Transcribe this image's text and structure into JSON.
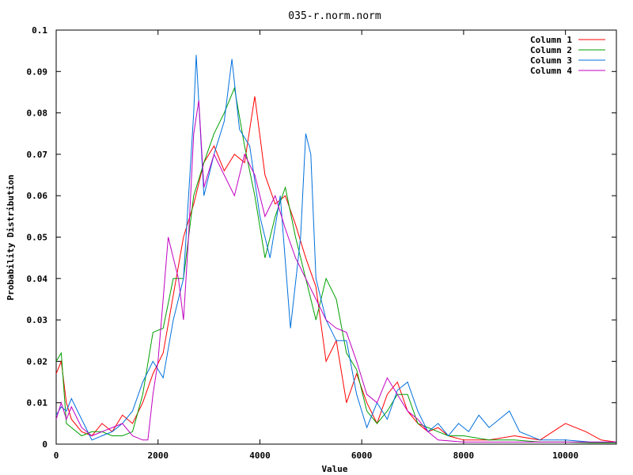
{
  "chart_data": {
    "type": "line",
    "title": "035-r.norm.norm",
    "xlabel": "Value",
    "ylabel": "Probability Distribution",
    "xlim": [
      0,
      11000
    ],
    "ylim": [
      0,
      0.1
    ],
    "x_ticks": [
      0,
      2000,
      4000,
      6000,
      8000,
      10000
    ],
    "x_tick_labels": [
      "0",
      "2000",
      "4000",
      "6000",
      "8000",
      "10000"
    ],
    "y_ticks": [
      0,
      0.01,
      0.02,
      0.03,
      0.04,
      0.05,
      0.06,
      0.07,
      0.08,
      0.09,
      0.1
    ],
    "y_tick_labels": [
      "0",
      "0.01",
      "0.02",
      "0.03",
      "0.04",
      "0.05",
      "0.06",
      "0.07",
      "0.08",
      "0.09",
      "0.1"
    ],
    "grid": false,
    "legend_position": "top-right",
    "series": [
      {
        "name": "Column 1",
        "color": "#ff0000",
        "x": [
          0,
          100,
          200,
          300,
          500,
          700,
          900,
          1100,
          1300,
          1500,
          1700,
          1900,
          2100,
          2300,
          2500,
          2700,
          2900,
          3100,
          3300,
          3500,
          3700,
          3900,
          4100,
          4300,
          4500,
          4700,
          4900,
          5100,
          5300,
          5500,
          5700,
          5900,
          6100,
          6300,
          6500,
          6700,
          6900,
          7100,
          7300,
          7500,
          7700,
          8000,
          8500,
          9000,
          9500,
          10000,
          10400,
          10700,
          11000
        ],
        "y": [
          0.017,
          0.02,
          0.01,
          0.006,
          0.003,
          0.002,
          0.005,
          0.003,
          0.007,
          0.005,
          0.01,
          0.017,
          0.022,
          0.036,
          0.05,
          0.058,
          0.068,
          0.072,
          0.066,
          0.07,
          0.068,
          0.084,
          0.065,
          0.058,
          0.06,
          0.053,
          0.045,
          0.038,
          0.02,
          0.025,
          0.01,
          0.017,
          0.01,
          0.005,
          0.012,
          0.015,
          0.008,
          0.005,
          0.003,
          0.004,
          0.002,
          0.001,
          0.001,
          0.002,
          0.001,
          0.005,
          0.003,
          0.001,
          0.0005
        ]
      },
      {
        "name": "Column 2",
        "color": "#00a000",
        "x": [
          0,
          100,
          200,
          300,
          500,
          700,
          900,
          1100,
          1300,
          1500,
          1700,
          1900,
          2100,
          2300,
          2500,
          2700,
          2900,
          3100,
          3300,
          3500,
          3700,
          3900,
          4100,
          4300,
          4500,
          4700,
          4900,
          5100,
          5300,
          5500,
          5700,
          5900,
          6100,
          6300,
          6500,
          6700,
          6900,
          7100,
          7300,
          7500,
          7700,
          8000,
          8500,
          9000,
          9500,
          10000,
          10500,
          11000
        ],
        "y": [
          0.02,
          0.022,
          0.005,
          0.004,
          0.002,
          0.003,
          0.003,
          0.002,
          0.002,
          0.003,
          0.012,
          0.027,
          0.028,
          0.04,
          0.04,
          0.06,
          0.068,
          0.075,
          0.08,
          0.086,
          0.072,
          0.06,
          0.045,
          0.055,
          0.062,
          0.05,
          0.04,
          0.03,
          0.04,
          0.035,
          0.022,
          0.018,
          0.008,
          0.005,
          0.008,
          0.012,
          0.012,
          0.005,
          0.004,
          0.003,
          0.002,
          0.002,
          0.001,
          0.001,
          0.0005,
          0.0005,
          0.0003,
          0.0003
        ]
      },
      {
        "name": "Column 3",
        "color": "#0070dd",
        "x": [
          0,
          100,
          200,
          300,
          500,
          700,
          900,
          1100,
          1300,
          1500,
          1700,
          1900,
          2100,
          2300,
          2500,
          2700,
          2750,
          2900,
          3100,
          3300,
          3450,
          3600,
          3800,
          4000,
          4200,
          4400,
          4600,
          4800,
          4900,
          5000,
          5100,
          5300,
          5500,
          5700,
          5900,
          6100,
          6300,
          6500,
          6700,
          6900,
          7100,
          7300,
          7500,
          7700,
          7900,
          8100,
          8300,
          8500,
          8700,
          8900,
          9100,
          9500,
          10000,
          10500,
          11000
        ],
        "y": [
          0.007,
          0.009,
          0.008,
          0.011,
          0.006,
          0.001,
          0.002,
          0.003,
          0.005,
          0.008,
          0.015,
          0.02,
          0.016,
          0.03,
          0.04,
          0.08,
          0.094,
          0.06,
          0.07,
          0.078,
          0.093,
          0.076,
          0.072,
          0.055,
          0.045,
          0.06,
          0.028,
          0.05,
          0.075,
          0.07,
          0.04,
          0.03,
          0.025,
          0.025,
          0.012,
          0.004,
          0.01,
          0.006,
          0.013,
          0.015,
          0.008,
          0.003,
          0.005,
          0.002,
          0.005,
          0.003,
          0.007,
          0.004,
          0.006,
          0.008,
          0.003,
          0.001,
          0.001,
          0.0005,
          0.0005
        ]
      },
      {
        "name": "Column 4",
        "color": "#c000c0",
        "x": [
          0,
          100,
          200,
          300,
          500,
          700,
          900,
          1100,
          1300,
          1500,
          1700,
          1800,
          1900,
          2000,
          2100,
          2200,
          2300,
          2400,
          2500,
          2600,
          2700,
          2800,
          2900,
          3100,
          3300,
          3500,
          3700,
          3900,
          4100,
          4300,
          4500,
          4700,
          4900,
          5100,
          5300,
          5500,
          5700,
          5900,
          6100,
          6300,
          6500,
          6700,
          6900,
          7100,
          7300,
          7500,
          8000,
          9000,
          10000,
          11000
        ],
        "y": [
          0.006,
          0.01,
          0.006,
          0.009,
          0.004,
          0.002,
          0.003,
          0.004,
          0.005,
          0.002,
          0.001,
          0.001,
          0.012,
          0.02,
          0.035,
          0.05,
          0.045,
          0.04,
          0.03,
          0.05,
          0.075,
          0.083,
          0.062,
          0.07,
          0.065,
          0.06,
          0.07,
          0.065,
          0.055,
          0.06,
          0.052,
          0.045,
          0.04,
          0.035,
          0.03,
          0.028,
          0.027,
          0.02,
          0.012,
          0.01,
          0.016,
          0.012,
          0.008,
          0.006,
          0.003,
          0.001,
          0.0005,
          0.0005,
          0.0005,
          0.0005
        ]
      }
    ]
  }
}
